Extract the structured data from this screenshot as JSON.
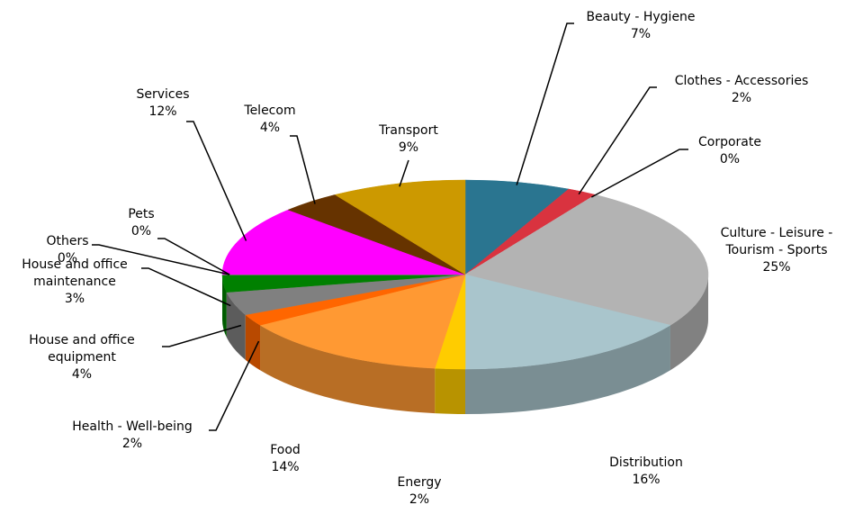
{
  "chart_data": {
    "type": "pie",
    "categories": [
      "Beauty - Hygiene",
      "Clothes - Accessories",
      "Corporate",
      "Culture - Leisure - Tourism - Sports",
      "Distribution",
      "Energy",
      "Food",
      "Health - Well-being",
      "House and office equipment",
      "House and office maintenance",
      "Others",
      "Pets",
      "Services",
      "Telecom",
      "Transport"
    ],
    "values": [
      7,
      2,
      0,
      25,
      16,
      2,
      14,
      2,
      4,
      3,
      0,
      0,
      12,
      4,
      9
    ],
    "value_labels": [
      "7%",
      "2%",
      "0%",
      "25%",
      "16%",
      "2%",
      "14%",
      "2%",
      "4%",
      "3%",
      "0%",
      "0%",
      "12%",
      "4%",
      "9%"
    ],
    "colors": [
      "#2a7590",
      "#d9333f",
      "#c0c0c0",
      "#b3b3b3",
      "#a9c5cc",
      "#ffcc00",
      "#ff9933",
      "#ff6600",
      "#808080",
      "#008000",
      "#999999",
      "#bbbbbb",
      "#ff00ff",
      "#663300",
      "#cc9900"
    ]
  }
}
